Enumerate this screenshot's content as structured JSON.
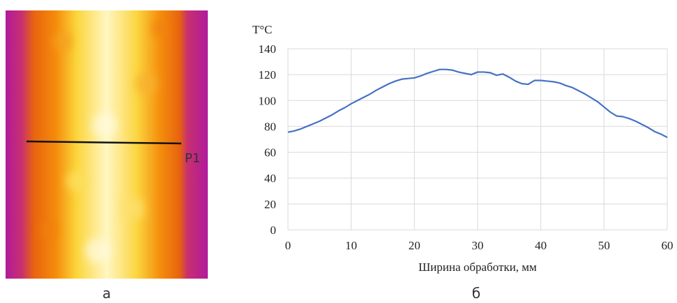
{
  "thermal_image": {
    "marker_label": "P1",
    "caption": "а"
  },
  "chart_caption": "б",
  "chart_data": {
    "type": "line",
    "y_label": "T°C",
    "x_label": "Ширина обработки, мм",
    "x": [
      0,
      1,
      2,
      3,
      4,
      5,
      6,
      7,
      8,
      9,
      10,
      11,
      12,
      13,
      14,
      15,
      16,
      17,
      18,
      19,
      20,
      21,
      22,
      23,
      24,
      25,
      26,
      27,
      28,
      29,
      30,
      31,
      32,
      33,
      34,
      35,
      36,
      37,
      38,
      39,
      40,
      41,
      42,
      43,
      44,
      45,
      46,
      47,
      48,
      49,
      50,
      51,
      52,
      53,
      54,
      55,
      56,
      57,
      58,
      59,
      60
    ],
    "values": [
      75.5,
      76.5,
      78,
      80,
      82,
      84,
      86.5,
      89,
      92,
      94.5,
      97.5,
      100,
      102.5,
      105,
      108,
      110.5,
      113,
      115,
      116.5,
      117,
      117.5,
      119,
      121,
      122.5,
      124,
      124,
      123.5,
      122,
      121,
      120,
      122,
      122,
      121.5,
      119.5,
      120.5,
      118,
      115,
      113,
      112.5,
      115.5,
      115.5,
      115,
      114.5,
      113.5,
      111.5,
      110,
      107.5,
      105,
      102,
      99,
      95,
      91,
      88,
      87.5,
      86,
      84,
      81.5,
      79,
      76,
      74,
      71.5
    ],
    "color": "#4472c4",
    "xlim": [
      0,
      60
    ],
    "xticks": [
      0,
      10,
      20,
      30,
      40,
      50,
      60
    ],
    "ylim": [
      0,
      140
    ],
    "yticks": [
      0,
      20,
      40,
      60,
      80,
      100,
      120,
      140
    ],
    "grid": true
  }
}
